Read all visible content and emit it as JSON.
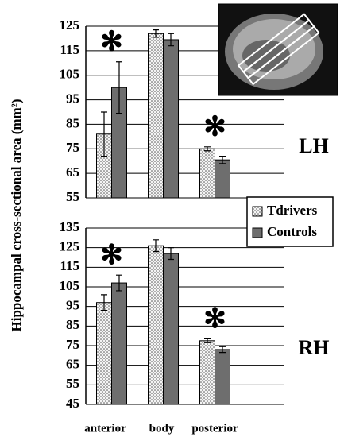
{
  "chart_data": [
    {
      "type": "bar",
      "ylabel": "Hippocampal cross-sectional area (mm²)",
      "panel_label": "LH",
      "ylim": [
        55,
        125
      ],
      "yticks": [
        55,
        65,
        75,
        85,
        95,
        105,
        115,
        125
      ],
      "grid": true,
      "series": [
        {
          "color": "#e6e6e6",
          "pattern": "dots",
          "values": [
            81,
            122,
            75
          ],
          "errors": [
            9,
            1.5,
            0.8
          ]
        },
        {
          "color": "#6e6e6e",
          "values": [
            100,
            119.5,
            70.5
          ],
          "errors": [
            10.5,
            2.5,
            1.5
          ]
        }
      ],
      "annotations": [
        {
          "text": "✻",
          "category": "anterior"
        },
        {
          "text": "✻",
          "category": "posterior"
        }
      ]
    },
    {
      "type": "bar",
      "panel_label": "RH",
      "legend": "right",
      "categories": [
        "anterior",
        "body",
        "posterior"
      ],
      "ylim": [
        45,
        135
      ],
      "yticks": [
        45,
        55,
        65,
        75,
        85,
        95,
        105,
        115,
        125,
        135
      ],
      "grid": true,
      "series": [
        {
          "name": "Tdrivers",
          "color": "#e6e6e6",
          "pattern": "dots",
          "values": [
            97,
            126,
            77.5
          ],
          "errors": [
            4,
            3,
            1
          ]
        },
        {
          "name": "Controls",
          "color": "#6e6e6e",
          "values": [
            107,
            122,
            73
          ],
          "errors": [
            4,
            3,
            1.5
          ]
        }
      ],
      "annotations": [
        {
          "text": "✻",
          "category": "anterior"
        },
        {
          "text": "✻",
          "category": "posterior"
        }
      ]
    }
  ]
}
